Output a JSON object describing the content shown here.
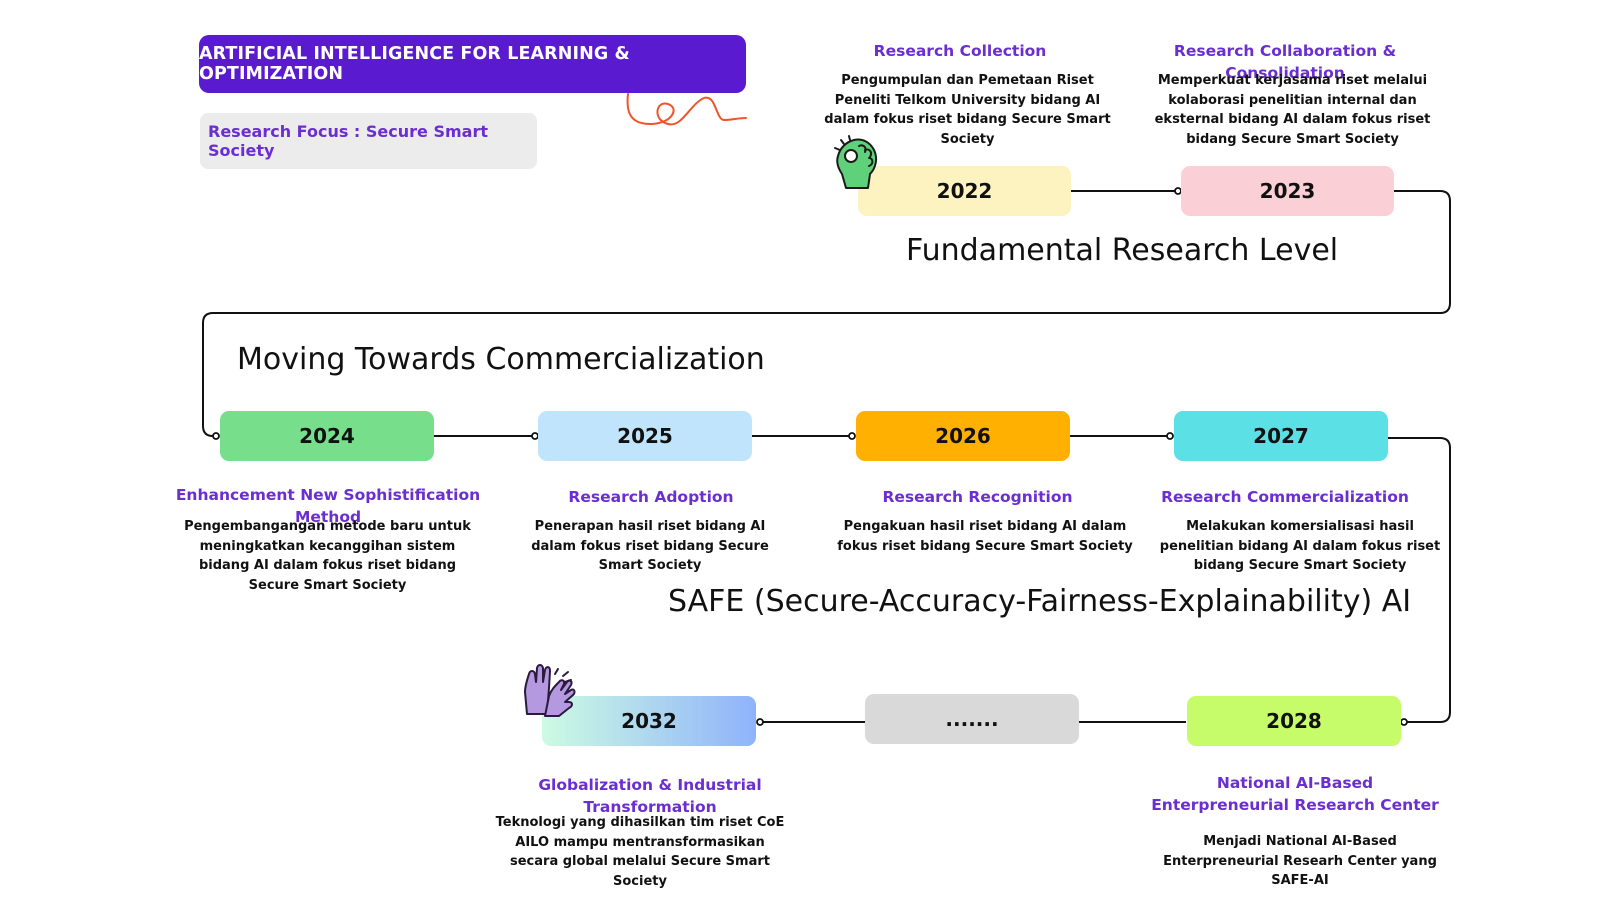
{
  "header": {
    "title": "ARTIFICIAL INTELLIGENCE FOR LEARNING & OPTIMIZATION",
    "focus": "Research Focus : Secure Smart Society"
  },
  "levels": {
    "fundamental": "Fundamental Research Level",
    "commercial": "Moving Towards Commercialization",
    "safe": "SAFE (Secure-Accuracy-Fairness-Explainability) AI"
  },
  "nodes": {
    "n2022": {
      "label": "2022",
      "color": "#fdf3c0"
    },
    "n2023": {
      "label": "2023",
      "color": "#fbcfd6"
    },
    "n2024": {
      "label": "2024",
      "color": "#77df8c"
    },
    "n2025": {
      "label": "2025",
      "color": "#bfe4fb"
    },
    "n2026": {
      "label": "2026",
      "color": "#ffb000"
    },
    "n2027": {
      "label": "2027",
      "color": "#5be0e6"
    },
    "n2028": {
      "label": "2028",
      "color": "#c6fb6a"
    },
    "ellipsis": {
      "label": ".......",
      "color": "#d9d9d9"
    },
    "n2032": {
      "label": "2032",
      "gradient": [
        "#cdfbe3",
        "#8fb3fb"
      ]
    }
  },
  "phases": {
    "p2022": {
      "title": "Research Collection",
      "desc": "Pengumpulan dan Pemetaan Riset Peneliti Telkom University bidang AI dalam fokus riset bidang Secure Smart Society"
    },
    "p2023": {
      "title": "Research Collaboration & Consolidation",
      "desc": "Memperkuat kerjasama riset melalui kolaborasi penelitian internal dan eksternal bidang AI dalam fokus riset bidang Secure Smart Society"
    },
    "p2024": {
      "title": "Enhancement New Sophistification Method",
      "desc": "Pengembangangan metode baru untuk meningkatkan kecanggihan sistem bidang AI dalam fokus riset bidang Secure Smart Society"
    },
    "p2025": {
      "title": "Research Adoption",
      "desc": "Penerapan hasil riset  bidang AI dalam fokus riset bidang Secure Smart Society"
    },
    "p2026": {
      "title": "Research Recognition",
      "desc": "Pengakuan hasil riset bidang AI dalam fokus riset bidang Secure Smart Society"
    },
    "p2027": {
      "title": "Research Commercialization",
      "desc": "Melakukan komersialisasi hasil penelitian bidang AI dalam fokus riset bidang Secure Smart Society"
    },
    "p2028": {
      "title": "National AI-Based Enterpreneurial Research Center",
      "desc": "Menjadi National AI-Based Enterpreneurial Researh Center yang SAFE-AI"
    },
    "p2032": {
      "title": "Globalization & Industrial Transformation",
      "desc": "Teknologi yang dihasilkan tim riset CoE AILO mampu mentransformasikan secara global melalui Secure Smart Society"
    }
  },
  "icons": {
    "ok_hand": "ok-hand-icon",
    "high_five": "high-five-icon",
    "scribble": "scribble-decoration"
  },
  "colors": {
    "accent_purple": "#5a1ad0",
    "title_purple": "#6b2ed0",
    "line": "#111111",
    "scribble": "#f0542a"
  }
}
